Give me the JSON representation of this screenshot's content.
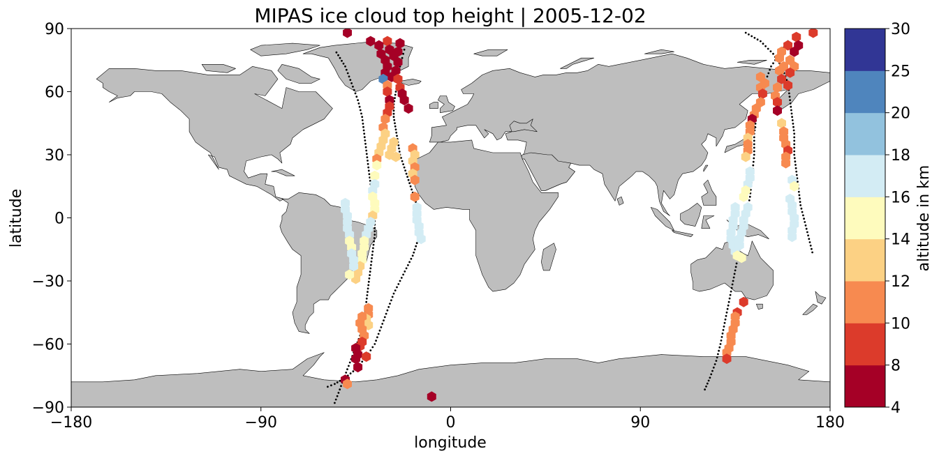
{
  "title": "MIPAS ice cloud top height | 2005-12-02",
  "map": {
    "projection": "equirectangular",
    "lon_range": [
      -180,
      180
    ],
    "lat_range": [
      -90,
      90
    ],
    "land_color": "#bebebe",
    "ocean_color": "#ffffff",
    "x_axis": {
      "label": "longitude",
      "ticks": [
        -180,
        -90,
        0,
        90,
        180
      ],
      "tick_labels": [
        "−180",
        "−90",
        "0",
        "90",
        "180"
      ]
    },
    "y_axis": {
      "label": "latitude",
      "ticks": [
        90,
        60,
        30,
        0,
        -30,
        -60,
        -90
      ],
      "tick_labels": [
        "90",
        "60",
        "30",
        "0",
        "−30",
        "−60",
        "−90"
      ]
    }
  },
  "colorbar": {
    "label": "altitude in km",
    "bounds": [
      4,
      8,
      10,
      12,
      14,
      16,
      18,
      20,
      25,
      30
    ],
    "tick_labels": [
      "4",
      "8",
      "10",
      "12",
      "14",
      "16",
      "18",
      "20",
      "25",
      "30"
    ],
    "colors": [
      "#a50026",
      "#d73027",
      "#f46d43",
      "#fdae61",
      "#fee090",
      "#e0f3f8",
      "#abd9e9",
      "#74add1",
      "#4575b4",
      "#313695"
    ],
    "display_colors": [
      "#a50026",
      "#dc3b2b",
      "#f78a50",
      "#fcd184",
      "#fefbbd",
      "#d3ecf4",
      "#92c2de",
      "#4f85bd",
      "#313695"
    ]
  },
  "chart_data": {
    "type": "scatter",
    "x_label": "longitude",
    "y_label": "latitude",
    "value_unit": "km",
    "tracks": [
      {
        "lon": [
          -55,
          -52,
          -49,
          -46,
          -43,
          -41,
          -40,
          -39,
          -38,
          -37,
          -36,
          -36,
          -37,
          -38,
          -39,
          -40,
          -41,
          -42,
          -44,
          -47,
          -50,
          -55
        ],
        "lat": [
          -88,
          -80,
          -72,
          -64,
          -56,
          -48,
          -40,
          -32,
          -24,
          -16,
          -8,
          0,
          8,
          16,
          24,
          32,
          40,
          48,
          56,
          64,
          72,
          80
        ]
      },
      {
        "lon": [
          -22,
          -23,
          -24,
          -25,
          -26,
          -27,
          -27,
          -26,
          -25,
          -24,
          -22,
          -20,
          -18,
          -16,
          -15,
          -14,
          -16,
          -18,
          -21,
          -24,
          -27,
          -30,
          -33,
          -36,
          -40,
          -45,
          -50,
          -55,
          -60
        ],
        "lat": [
          80,
          76,
          72,
          66,
          60,
          54,
          48,
          42,
          36,
          30,
          24,
          18,
          12,
          6,
          0,
          -6,
          -12,
          -18,
          -24,
          -30,
          -36,
          -44,
          -52,
          -60,
          -66,
          -72,
          -76,
          -79,
          -81
        ]
      },
      {
        "lon": [
          160,
          156,
          152,
          149,
          146,
          145,
          144,
          144,
          143,
          142,
          140,
          138,
          136,
          134,
          132,
          130,
          128,
          126,
          123,
          120
        ],
        "lat": [
          84,
          78,
          72,
          64,
          56,
          48,
          40,
          30,
          20,
          10,
          0,
          -10,
          -20,
          -30,
          -40,
          -50,
          -60,
          -68,
          -76,
          -83
        ]
      },
      {
        "lon": [
          140,
          147,
          153,
          157,
          160,
          161,
          162,
          163,
          163,
          164,
          165,
          166,
          168,
          170,
          172
        ],
        "lat": [
          88,
          84,
          78,
          72,
          64,
          56,
          48,
          40,
          30,
          22,
          14,
          6,
          -2,
          -10,
          -18
        ]
      }
    ],
    "clouds": [
      {
        "lon": -49,
        "lat": 88,
        "value": 6
      },
      {
        "lon": -38,
        "lat": 84,
        "value": 6
      },
      {
        "lon": -30,
        "lat": 84,
        "value": 9
      },
      {
        "lon": -24,
        "lat": 83,
        "value": 6
      },
      {
        "lon": -34,
        "lat": 82,
        "value": 6
      },
      {
        "lon": -29,
        "lat": 80,
        "value": 6
      },
      {
        "lon": -25,
        "lat": 79,
        "value": 6
      },
      {
        "lon": -33,
        "lat": 78,
        "value": 6
      },
      {
        "lon": -27,
        "lat": 77,
        "value": 6
      },
      {
        "lon": -31,
        "lat": 75,
        "value": 6
      },
      {
        "lon": -25,
        "lat": 74,
        "value": 6
      },
      {
        "lon": -30,
        "lat": 72,
        "value": 6
      },
      {
        "lon": -26,
        "lat": 70,
        "value": 6
      },
      {
        "lon": -31,
        "lat": 69,
        "value": 6
      },
      {
        "lon": -28,
        "lat": 67,
        "value": 6
      },
      {
        "lon": -32,
        "lat": 66,
        "value": 22
      },
      {
        "lon": -25,
        "lat": 66,
        "value": 9
      },
      {
        "lon": -30,
        "lat": 63,
        "value": 11
      },
      {
        "lon": -24,
        "lat": 62,
        "value": 9
      },
      {
        "lon": -30,
        "lat": 60,
        "value": 9
      },
      {
        "lon": -23,
        "lat": 59,
        "value": 6
      },
      {
        "lon": -29,
        "lat": 56,
        "value": 6
      },
      {
        "lon": -22,
        "lat": 56,
        "value": 6
      },
      {
        "lon": -29,
        "lat": 53,
        "value": 9
      },
      {
        "lon": -20,
        "lat": 52,
        "value": 6
      },
      {
        "lon": -30,
        "lat": 50,
        "value": 9
      },
      {
        "lon": -31,
        "lat": 47,
        "value": 11
      },
      {
        "lon": -32,
        "lat": 43,
        "value": 11
      },
      {
        "lon": -31,
        "lat": 40,
        "value": 13
      },
      {
        "lon": -32,
        "lat": 37,
        "value": 13
      },
      {
        "lon": -33,
        "lat": 34,
        "value": 13
      },
      {
        "lon": -34,
        "lat": 31,
        "value": 13
      },
      {
        "lon": -35,
        "lat": 28,
        "value": 11
      },
      {
        "lon": -35,
        "lat": 25,
        "value": 15
      },
      {
        "lon": -36,
        "lat": 20,
        "value": 15
      },
      {
        "lon": -36,
        "lat": 16,
        "value": 17
      },
      {
        "lon": -37,
        "lat": 13,
        "value": 17
      },
      {
        "lon": -37,
        "lat": 10,
        "value": 15
      },
      {
        "lon": -36,
        "lat": 7,
        "value": 15
      },
      {
        "lon": -36,
        "lat": 4,
        "value": 15
      },
      {
        "lon": -37,
        "lat": 1,
        "value": 13
      },
      {
        "lon": -38,
        "lat": -2,
        "value": 17
      },
      {
        "lon": -39,
        "lat": -5,
        "value": 17
      },
      {
        "lon": -40,
        "lat": -8,
        "value": 17
      },
      {
        "lon": -41,
        "lat": -11,
        "value": 15
      },
      {
        "lon": -41,
        "lat": -14,
        "value": 15
      },
      {
        "lon": -42,
        "lat": -17,
        "value": 15
      },
      {
        "lon": -42,
        "lat": -20,
        "value": 15
      },
      {
        "lon": -43,
        "lat": -23,
        "value": 13
      },
      {
        "lon": -44,
        "lat": -26,
        "value": 13
      },
      {
        "lon": -45,
        "lat": -29,
        "value": 13
      },
      {
        "lon": -27,
        "lat": 36,
        "value": 13
      },
      {
        "lon": -28,
        "lat": 33,
        "value": 13
      },
      {
        "lon": -29,
        "lat": 30,
        "value": 13
      },
      {
        "lon": -26,
        "lat": 29,
        "value": 13
      },
      {
        "lon": -18,
        "lat": 33,
        "value": 11
      },
      {
        "lon": -17,
        "lat": 30,
        "value": 13
      },
      {
        "lon": -18,
        "lat": 27,
        "value": 13
      },
      {
        "lon": -17,
        "lat": 24,
        "value": 11
      },
      {
        "lon": -18,
        "lat": 21,
        "value": 13
      },
      {
        "lon": -17,
        "lat": 18,
        "value": 11
      },
      {
        "lon": -17,
        "lat": 10,
        "value": 11
      },
      {
        "lon": -16,
        "lat": 5,
        "value": 17
      },
      {
        "lon": -16,
        "lat": 2,
        "value": 17
      },
      {
        "lon": -16,
        "lat": -1,
        "value": 17
      },
      {
        "lon": -15,
        "lat": -4,
        "value": 17
      },
      {
        "lon": -15,
        "lat": -7,
        "value": 17
      },
      {
        "lon": -14,
        "lat": -10,
        "value": 17
      },
      {
        "lon": -50,
        "lat": 7,
        "value": 17
      },
      {
        "lon": -50,
        "lat": 4,
        "value": 17
      },
      {
        "lon": -49,
        "lat": 1,
        "value": 17
      },
      {
        "lon": -49,
        "lat": -2,
        "value": 17
      },
      {
        "lon": -49,
        "lat": -5,
        "value": 17
      },
      {
        "lon": -48,
        "lat": -8,
        "value": 17
      },
      {
        "lon": -48,
        "lat": -11,
        "value": 15
      },
      {
        "lon": -47,
        "lat": -14,
        "value": 15
      },
      {
        "lon": -47,
        "lat": -17,
        "value": 17
      },
      {
        "lon": -46,
        "lat": -20,
        "value": 17
      },
      {
        "lon": -46,
        "lat": -23,
        "value": 17
      },
      {
        "lon": -48,
        "lat": -27,
        "value": 15
      },
      {
        "lon": -39,
        "lat": -43,
        "value": 11
      },
      {
        "lon": -39,
        "lat": -46,
        "value": 11
      },
      {
        "lon": -40,
        "lat": -48,
        "value": 13
      },
      {
        "lon": -39,
        "lat": -51,
        "value": 13
      },
      {
        "lon": -42,
        "lat": -47,
        "value": 11
      },
      {
        "lon": -43,
        "lat": -50,
        "value": 11
      },
      {
        "lon": -42,
        "lat": -53,
        "value": 11
      },
      {
        "lon": -41,
        "lat": -56,
        "value": 11
      },
      {
        "lon": -42,
        "lat": -59,
        "value": 9
      },
      {
        "lon": -43,
        "lat": -61,
        "value": 9
      },
      {
        "lon": -45,
        "lat": -62,
        "value": 6
      },
      {
        "lon": -44,
        "lat": -65,
        "value": 6
      },
      {
        "lon": -45,
        "lat": -67,
        "value": 6
      },
      {
        "lon": -40,
        "lat": -66,
        "value": 9
      },
      {
        "lon": -44,
        "lat": -71,
        "value": 6
      },
      {
        "lon": -50,
        "lat": -77,
        "value": 6
      },
      {
        "lon": -49,
        "lat": -79,
        "value": 11
      },
      {
        "lon": -9,
        "lat": -85,
        "value": 6
      },
      {
        "lon": 164,
        "lat": 86,
        "value": 9
      },
      {
        "lon": 172,
        "lat": 88,
        "value": 9
      },
      {
        "lon": 160,
        "lat": 82,
        "value": 9
      },
      {
        "lon": 165,
        "lat": 82,
        "value": 6
      },
      {
        "lon": 157,
        "lat": 79,
        "value": 11
      },
      {
        "lon": 163,
        "lat": 79,
        "value": 6
      },
      {
        "lon": 156,
        "lat": 76,
        "value": 11
      },
      {
        "lon": 161,
        "lat": 75,
        "value": 11
      },
      {
        "lon": 158,
        "lat": 72,
        "value": 11
      },
      {
        "lon": 163,
        "lat": 72,
        "value": 11
      },
      {
        "lon": 156,
        "lat": 70,
        "value": 11
      },
      {
        "lon": 161,
        "lat": 69,
        "value": 9
      },
      {
        "lon": 147,
        "lat": 67,
        "value": 11
      },
      {
        "lon": 149,
        "lat": 64,
        "value": 11
      },
      {
        "lon": 157,
        "lat": 66,
        "value": 9
      },
      {
        "lon": 160,
        "lat": 63,
        "value": 9
      },
      {
        "lon": 155,
        "lat": 62,
        "value": 11
      },
      {
        "lon": 147,
        "lat": 62,
        "value": 11
      },
      {
        "lon": 148,
        "lat": 59,
        "value": 9
      },
      {
        "lon": 154,
        "lat": 58,
        "value": 11
      },
      {
        "lon": 155,
        "lat": 55,
        "value": 9
      },
      {
        "lon": 147,
        "lat": 55,
        "value": 11
      },
      {
        "lon": 145,
        "lat": 52,
        "value": 11
      },
      {
        "lon": 144,
        "lat": 49,
        "value": 11
      },
      {
        "lon": 143,
        "lat": 47,
        "value": 6
      },
      {
        "lon": 142,
        "lat": 44,
        "value": 11
      },
      {
        "lon": 142,
        "lat": 41,
        "value": 11
      },
      {
        "lon": 155,
        "lat": 51,
        "value": 6
      },
      {
        "lon": 157,
        "lat": 45,
        "value": 13
      },
      {
        "lon": 158,
        "lat": 41,
        "value": 11
      },
      {
        "lon": 158,
        "lat": 38,
        "value": 11
      },
      {
        "lon": 159,
        "lat": 35,
        "value": 11
      },
      {
        "lon": 160,
        "lat": 32,
        "value": 9
      },
      {
        "lon": 141,
        "lat": 38,
        "value": 13
      },
      {
        "lon": 141,
        "lat": 35,
        "value": 11
      },
      {
        "lon": 141,
        "lat": 32,
        "value": 11
      },
      {
        "lon": 140,
        "lat": 29,
        "value": 13
      },
      {
        "lon": 159,
        "lat": 29,
        "value": 11
      },
      {
        "lon": 159,
        "lat": 26,
        "value": 11
      },
      {
        "lon": 142,
        "lat": 22,
        "value": 17
      },
      {
        "lon": 142,
        "lat": 19,
        "value": 17
      },
      {
        "lon": 141,
        "lat": 16,
        "value": 17
      },
      {
        "lon": 140,
        "lat": 13,
        "value": 15
      },
      {
        "lon": 139,
        "lat": 10,
        "value": 15
      },
      {
        "lon": 162,
        "lat": 18,
        "value": 17
      },
      {
        "lon": 163,
        "lat": 15,
        "value": 15
      },
      {
        "lon": 135,
        "lat": 5,
        "value": 17
      },
      {
        "lon": 135,
        "lat": 2,
        "value": 17
      },
      {
        "lon": 134,
        "lat": -1,
        "value": 17
      },
      {
        "lon": 134,
        "lat": -4,
        "value": 17
      },
      {
        "lon": 133,
        "lat": -7,
        "value": 17
      },
      {
        "lon": 133,
        "lat": -10,
        "value": 17
      },
      {
        "lon": 134,
        "lat": -13,
        "value": 17
      },
      {
        "lon": 135,
        "lat": -16,
        "value": 17
      },
      {
        "lon": 136,
        "lat": -18,
        "value": 15
      },
      {
        "lon": 138,
        "lat": -19,
        "value": 15
      },
      {
        "lon": 141,
        "lat": 5,
        "value": 17
      },
      {
        "lon": 140,
        "lat": 2,
        "value": 17
      },
      {
        "lon": 139,
        "lat": -1,
        "value": 17
      },
      {
        "lon": 139,
        "lat": -4,
        "value": 17
      },
      {
        "lon": 138,
        "lat": -7,
        "value": 17
      },
      {
        "lon": 137,
        "lat": -10,
        "value": 17
      },
      {
        "lon": 137,
        "lat": -13,
        "value": 17
      },
      {
        "lon": 161,
        "lat": 9,
        "value": 17
      },
      {
        "lon": 162,
        "lat": 6,
        "value": 17
      },
      {
        "lon": 162,
        "lat": 3,
        "value": 17
      },
      {
        "lon": 163,
        "lat": 0,
        "value": 17
      },
      {
        "lon": 163,
        "lat": -3,
        "value": 17
      },
      {
        "lon": 162,
        "lat": -6,
        "value": 17
      },
      {
        "lon": 162,
        "lat": -9,
        "value": 17
      },
      {
        "lon": 139,
        "lat": -40,
        "value": 9
      },
      {
        "lon": 136,
        "lat": -45,
        "value": 9
      },
      {
        "lon": 135,
        "lat": -47,
        "value": 11
      },
      {
        "lon": 135,
        "lat": -50,
        "value": 11
      },
      {
        "lon": 134,
        "lat": -53,
        "value": 11
      },
      {
        "lon": 133,
        "lat": -56,
        "value": 11
      },
      {
        "lon": 133,
        "lat": -59,
        "value": 11
      },
      {
        "lon": 132,
        "lat": -62,
        "value": 11
      },
      {
        "lon": 131,
        "lat": -64,
        "value": 11
      },
      {
        "lon": 131,
        "lat": -67,
        "value": 9
      }
    ]
  }
}
